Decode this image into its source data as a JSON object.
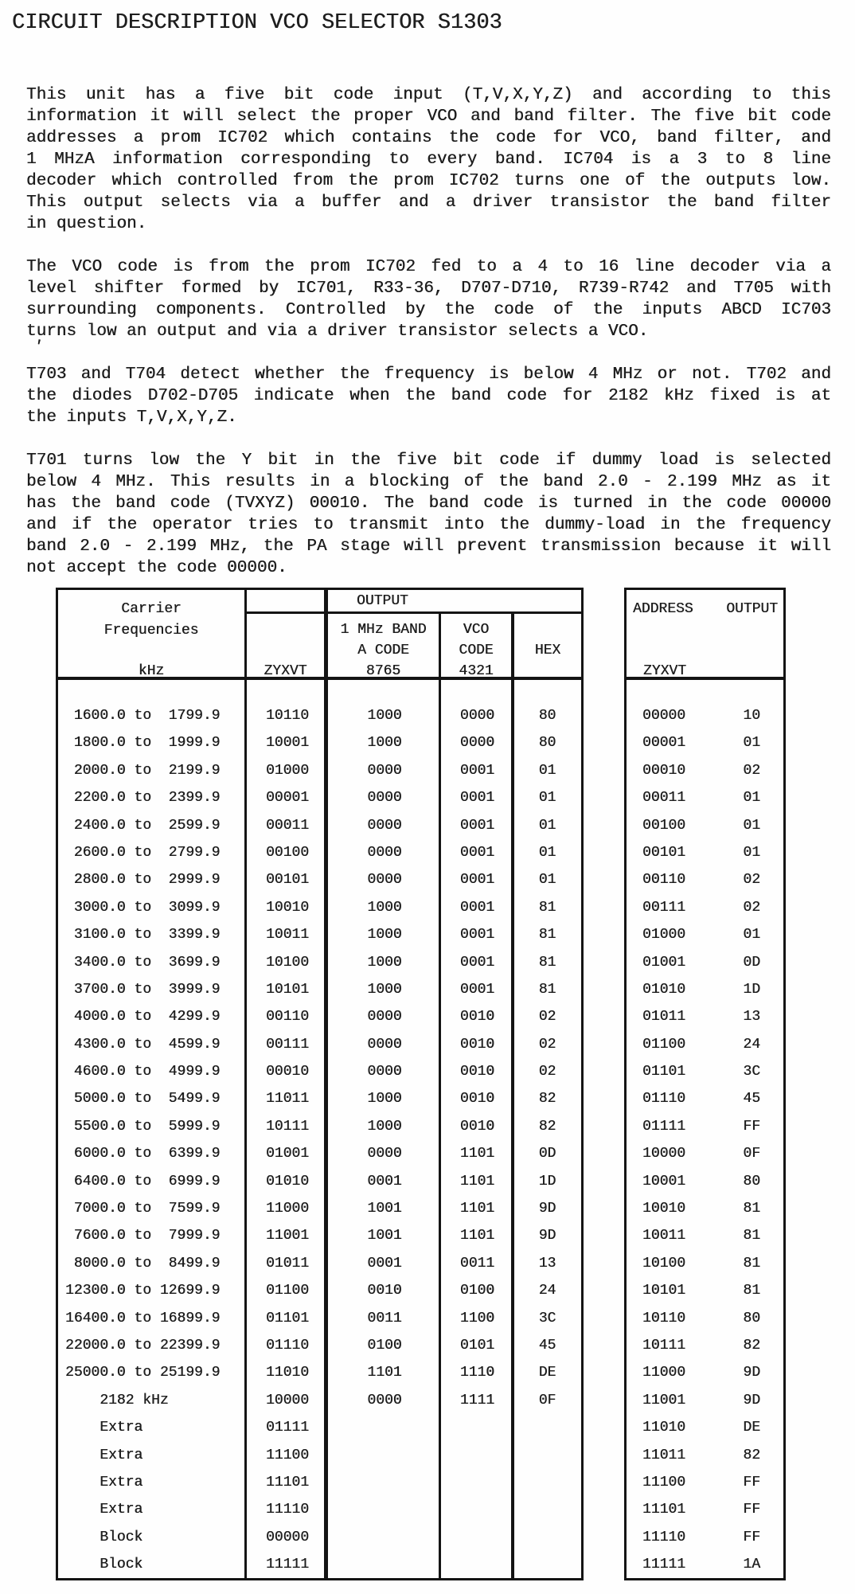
{
  "colors": {
    "paper": "#fefefe",
    "ink": "#1e1e1e"
  },
  "page": {
    "title": "CIRCUIT DESCRIPTION VCO SELECTOR S1303",
    "stray_mark": "'",
    "paragraphs": [
      {
        "lines": [
          "This unit has a five bit code input (T,V,X,Y,Z) and according to this",
          "information it will select the proper VCO and band filter. The five bit code",
          "addresses a prom IC702 which contains the code for VCO, band filter, and",
          "1 MHzA information corresponding to every band. IC704 is a 3 to 8 line",
          "decoder which controlled from the prom IC702 turns one of the outputs low.",
          "This output selects via a buffer and a driver transistor the band filter",
          "in question."
        ]
      },
      {
        "lines": [
          "The VCO code is from the prom IC702 fed to a 4 to 16 line decoder via a",
          "level shifter formed by IC701, R33-36, D707-D710, R739-R742 and T705 with",
          "surrounding components. Controlled by the code of the inputs ABCD IC703",
          "turns low an output and via a driver transistor selects a VCO."
        ]
      },
      {
        "lines": [
          "T703 and T704 detect whether the frequency is below 4 MHz or not. T702 and",
          "the diodes D702-D705 indicate when the band code for 2182 kHz fixed is at",
          "the inputs T,V,X,Y,Z."
        ]
      },
      {
        "lines": [
          "T701 turns low the Y bit in the five bit code if dummy load is selected",
          "below 4 MHz. This results in a blocking of the band 2.0 - 2.199 MHz as it",
          "has the band code (TVXYZ) 00010. The band code is turned in the code 00000",
          "and if the operator tries to transmit into the dummy-load in the frequency",
          "band 2.0 - 2.199 MHz, the PA stage will prevent transmission because it will",
          "not accept the code 00000."
        ]
      }
    ]
  },
  "band_table": {
    "header": {
      "carrier_lines": [
        "Carrier",
        "Frequencies",
        "kHz"
      ],
      "output_group": "OUTPUT",
      "zyxvt": "ZYXVT",
      "band_lines": [
        "1 MHz BAND",
        "A CODE",
        "8765"
      ],
      "vco_lines": [
        "VCO",
        "CODE",
        "4321"
      ],
      "hex": "HEX"
    },
    "rows": [
      {
        "carrier": " 1600.0 to  1799.9",
        "zyxvt": "10110",
        "band_code": "1000",
        "vco_code": "0000",
        "hex": "80"
      },
      {
        "carrier": " 1800.0 to  1999.9",
        "zyxvt": "10001",
        "band_code": "1000",
        "vco_code": "0000",
        "hex": "80"
      },
      {
        "carrier": " 2000.0 to  2199.9",
        "zyxvt": "01000",
        "band_code": "0000",
        "vco_code": "0001",
        "hex": "01"
      },
      {
        "carrier": " 2200.0 to  2399.9",
        "zyxvt": "00001",
        "band_code": "0000",
        "vco_code": "0001",
        "hex": "01"
      },
      {
        "carrier": " 2400.0 to  2599.9",
        "zyxvt": "00011",
        "band_code": "0000",
        "vco_code": "0001",
        "hex": "01"
      },
      {
        "carrier": " 2600.0 to  2799.9",
        "zyxvt": "00100",
        "band_code": "0000",
        "vco_code": "0001",
        "hex": "01"
      },
      {
        "carrier": " 2800.0 to  2999.9",
        "zyxvt": "00101",
        "band_code": "0000",
        "vco_code": "0001",
        "hex": "01"
      },
      {
        "carrier": " 3000.0 to  3099.9",
        "zyxvt": "10010",
        "band_code": "1000",
        "vco_code": "0001",
        "hex": "81"
      },
      {
        "carrier": " 3100.0 to  3399.9",
        "zyxvt": "10011",
        "band_code": "1000",
        "vco_code": "0001",
        "hex": "81"
      },
      {
        "carrier": " 3400.0 to  3699.9",
        "zyxvt": "10100",
        "band_code": "1000",
        "vco_code": "0001",
        "hex": "81"
      },
      {
        "carrier": " 3700.0 to  3999.9",
        "zyxvt": "10101",
        "band_code": "1000",
        "vco_code": "0001",
        "hex": "81"
      },
      {
        "carrier": " 4000.0 to  4299.9",
        "zyxvt": "00110",
        "band_code": "0000",
        "vco_code": "0010",
        "hex": "02"
      },
      {
        "carrier": " 4300.0 to  4599.9",
        "zyxvt": "00111",
        "band_code": "0000",
        "vco_code": "0010",
        "hex": "02"
      },
      {
        "carrier": " 4600.0 to  4999.9",
        "zyxvt": "00010",
        "band_code": "0000",
        "vco_code": "0010",
        "hex": "02"
      },
      {
        "carrier": " 5000.0 to  5499.9",
        "zyxvt": "11011",
        "band_code": "1000",
        "vco_code": "0010",
        "hex": "82"
      },
      {
        "carrier": " 5500.0 to  5999.9",
        "zyxvt": "10111",
        "band_code": "1000",
        "vco_code": "0010",
        "hex": "82"
      },
      {
        "carrier": " 6000.0 to  6399.9",
        "zyxvt": "01001",
        "band_code": "0000",
        "vco_code": "1101",
        "hex": "0D"
      },
      {
        "carrier": " 6400.0 to  6999.9",
        "zyxvt": "01010",
        "band_code": "0001",
        "vco_code": "1101",
        "hex": "1D"
      },
      {
        "carrier": " 7000.0 to  7599.9",
        "zyxvt": "11000",
        "band_code": "1001",
        "vco_code": "1101",
        "hex": "9D"
      },
      {
        "carrier": " 7600.0 to  7999.9",
        "zyxvt": "11001",
        "band_code": "1001",
        "vco_code": "1101",
        "hex": "9D"
      },
      {
        "carrier": " 8000.0 to  8499.9",
        "zyxvt": "01011",
        "band_code": "0001",
        "vco_code": "0011",
        "hex": "13"
      },
      {
        "carrier": "12300.0 to 12699.9",
        "zyxvt": "01100",
        "band_code": "0010",
        "vco_code": "0100",
        "hex": "24"
      },
      {
        "carrier": "16400.0 to 16899.9",
        "zyxvt": "01101",
        "band_code": "0011",
        "vco_code": "1100",
        "hex": "3C"
      },
      {
        "carrier": "22000.0 to 22399.9",
        "zyxvt": "01110",
        "band_code": "0100",
        "vco_code": "0101",
        "hex": "45"
      },
      {
        "carrier": "25000.0 to 25199.9",
        "zyxvt": "11010",
        "band_code": "1101",
        "vco_code": "1110",
        "hex": "DE"
      },
      {
        "carrier": "    2182 kHz",
        "zyxvt": "10000",
        "band_code": "0000",
        "vco_code": "1111",
        "hex": "0F"
      },
      {
        "carrier": "    Extra",
        "zyxvt": "01111",
        "band_code": "",
        "vco_code": "",
        "hex": ""
      },
      {
        "carrier": "    Extra",
        "zyxvt": "11100",
        "band_code": "",
        "vco_code": "",
        "hex": ""
      },
      {
        "carrier": "    Extra",
        "zyxvt": "11101",
        "band_code": "",
        "vco_code": "",
        "hex": ""
      },
      {
        "carrier": "    Extra",
        "zyxvt": "11110",
        "band_code": "",
        "vco_code": "",
        "hex": ""
      },
      {
        "carrier": "    Block",
        "zyxvt": "00000",
        "band_code": "",
        "vco_code": "",
        "hex": ""
      },
      {
        "carrier": "    Block",
        "zyxvt": "11111",
        "band_code": "",
        "vco_code": "",
        "hex": ""
      }
    ]
  },
  "address_table": {
    "header": {
      "address": "ADDRESS",
      "output": "OUTPUT",
      "zyxvt": "ZYXVT"
    },
    "rows": [
      {
        "address": "00000",
        "output": "10"
      },
      {
        "address": "00001",
        "output": "01"
      },
      {
        "address": "00010",
        "output": "02"
      },
      {
        "address": "00011",
        "output": "01"
      },
      {
        "address": "00100",
        "output": "01"
      },
      {
        "address": "00101",
        "output": "01"
      },
      {
        "address": "00110",
        "output": "02"
      },
      {
        "address": "00111",
        "output": "02"
      },
      {
        "address": "01000",
        "output": "01"
      },
      {
        "address": "01001",
        "output": "0D"
      },
      {
        "address": "01010",
        "output": "1D"
      },
      {
        "address": "01011",
        "output": "13"
      },
      {
        "address": "01100",
        "output": "24"
      },
      {
        "address": "01101",
        "output": "3C"
      },
      {
        "address": "01110",
        "output": "45"
      },
      {
        "address": "01111",
        "output": "FF"
      },
      {
        "address": "10000",
        "output": "0F"
      },
      {
        "address": "10001",
        "output": "80"
      },
      {
        "address": "10010",
        "output": "81"
      },
      {
        "address": "10011",
        "output": "81"
      },
      {
        "address": "10100",
        "output": "81"
      },
      {
        "address": "10101",
        "output": "81"
      },
      {
        "address": "10110",
        "output": "80"
      },
      {
        "address": "10111",
        "output": "82"
      },
      {
        "address": "11000",
        "output": "9D"
      },
      {
        "address": "11001",
        "output": "9D"
      },
      {
        "address": "11010",
        "output": "DE"
      },
      {
        "address": "11011",
        "output": "82"
      },
      {
        "address": "11100",
        "output": "FF"
      },
      {
        "address": "11101",
        "output": "FF"
      },
      {
        "address": "11110",
        "output": "FF"
      },
      {
        "address": "11111",
        "output": "1A"
      }
    ]
  }
}
